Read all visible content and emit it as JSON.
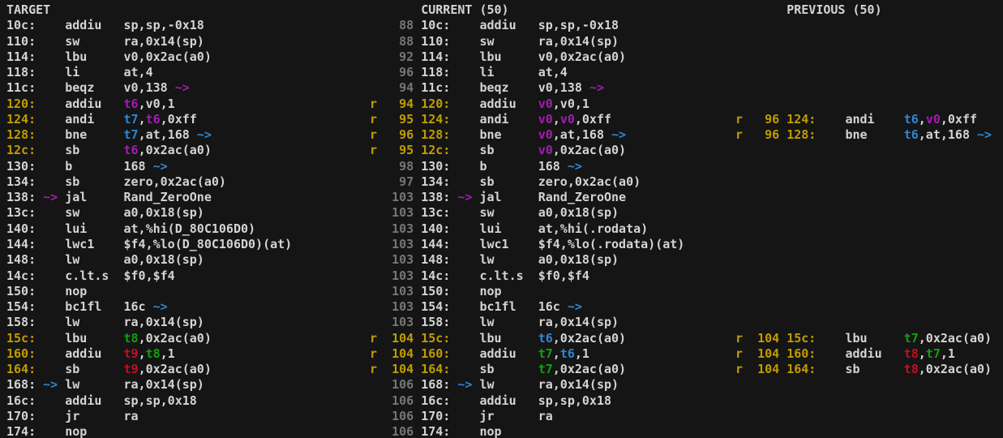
{
  "palette": {
    "fg": "#d4d4d4",
    "dim": "#767676",
    "yellow": "#c19c00",
    "magenta": "#a21db0",
    "blue": "#2e86d6",
    "green": "#13a10e",
    "red": "#c50f1f",
    "bg": "#151515"
  },
  "columns": [
    {
      "id": "target",
      "header": "TARGET",
      "rows": [
        [
          [
            "10c:    addiu   sp,sp,-0x18",
            "fg"
          ]
        ],
        [
          [
            "110:    sw      ra,0x14(sp)",
            "fg"
          ]
        ],
        [
          [
            "114:    lbu     v0,0x2ac(a0)",
            "fg"
          ]
        ],
        [
          [
            "118:    li      at,4",
            "fg"
          ]
        ],
        [
          [
            "11c:    beqz    v0,138 ",
            "fg"
          ],
          [
            "~>",
            "m"
          ]
        ],
        [
          [
            "120:",
            "y"
          ],
          [
            "    addiu   ",
            "fg"
          ],
          [
            "t6",
            "m"
          ],
          [
            ",v0,1",
            "fg"
          ]
        ],
        [
          [
            "124:",
            "y"
          ],
          [
            "    andi    ",
            "fg"
          ],
          [
            "t7",
            "b"
          ],
          [
            ",",
            "fg"
          ],
          [
            "t6",
            "m"
          ],
          [
            ",0xff",
            "fg"
          ]
        ],
        [
          [
            "128:",
            "y"
          ],
          [
            "    bne     ",
            "fg"
          ],
          [
            "t7",
            "b"
          ],
          [
            ",at,168 ",
            "fg"
          ],
          [
            "~>",
            "b"
          ]
        ],
        [
          [
            "12c:",
            "y"
          ],
          [
            "    sb      ",
            "fg"
          ],
          [
            "t6",
            "m"
          ],
          [
            ",0x2ac(a0)",
            "fg"
          ]
        ],
        [
          [
            "130:    b       168 ",
            "fg"
          ],
          [
            "~>",
            "b"
          ]
        ],
        [
          [
            "134:    sb      zero,0x2ac(a0)",
            "fg"
          ]
        ],
        [
          [
            "138: ",
            "fg"
          ],
          [
            "~>",
            "m"
          ],
          [
            " jal     Rand_ZeroOne",
            "fg"
          ]
        ],
        [
          [
            "13c:    sw      a0,0x18(sp)",
            "fg"
          ]
        ],
        [
          [
            "140:    lui     at,%hi(D_80C106D0)",
            "fg"
          ]
        ],
        [
          [
            "144:    lwc1    $f4,%lo(D_80C106D0)(at)",
            "fg"
          ]
        ],
        [
          [
            "148:    lw      a0,0x18(sp)",
            "fg"
          ]
        ],
        [
          [
            "14c:    c.lt.s  $f0,$f4",
            "fg"
          ]
        ],
        [
          [
            "150:    nop",
            "fg"
          ]
        ],
        [
          [
            "154:    bc1fl   16c ",
            "fg"
          ],
          [
            "~>",
            "b"
          ]
        ],
        [
          [
            "158:    lw      ra,0x14(sp)",
            "fg"
          ]
        ],
        [
          [
            "15c:",
            "y"
          ],
          [
            "    lbu     ",
            "fg"
          ],
          [
            "t8",
            "g"
          ],
          [
            ",0x2ac(a0)",
            "fg"
          ]
        ],
        [
          [
            "160:",
            "y"
          ],
          [
            "    addiu   ",
            "fg"
          ],
          [
            "t9",
            "r"
          ],
          [
            ",",
            "fg"
          ],
          [
            "t8",
            "g"
          ],
          [
            ",1",
            "fg"
          ]
        ],
        [
          [
            "164:",
            "y"
          ],
          [
            "    sb      ",
            "fg"
          ],
          [
            "t9",
            "r"
          ],
          [
            ",0x2ac(a0)",
            "fg"
          ]
        ],
        [
          [
            "168: ",
            "fg"
          ],
          [
            "~>",
            "b"
          ],
          [
            " lw      ra,0x14(sp)",
            "fg"
          ]
        ],
        [
          [
            "16c:    addiu   sp,sp,0x18",
            "fg"
          ]
        ],
        [
          [
            "170:    jr      ra",
            "fg"
          ]
        ],
        [
          [
            "174:    nop",
            "fg"
          ]
        ]
      ]
    },
    {
      "id": "current",
      "header": "CURRENT (50)",
      "rows": [
        [
          [
            "    88 ",
            "dim"
          ],
          [
            "10c:    addiu   sp,sp,-0x18",
            "fg"
          ]
        ],
        [
          [
            "    88 ",
            "dim"
          ],
          [
            "110:    sw      ra,0x14(sp)",
            "fg"
          ]
        ],
        [
          [
            "    92 ",
            "dim"
          ],
          [
            "114:    lbu     v0,0x2ac(a0)",
            "fg"
          ]
        ],
        [
          [
            "    96 ",
            "dim"
          ],
          [
            "118:    li      at,4",
            "fg"
          ]
        ],
        [
          [
            "    94 ",
            "dim"
          ],
          [
            "11c:    beqz    v0,138 ",
            "fg"
          ],
          [
            "~>",
            "m"
          ]
        ],
        [
          [
            "r   94 120:",
            "y"
          ],
          [
            "    addiu   ",
            "fg"
          ],
          [
            "v0",
            "m"
          ],
          [
            ",v0,1",
            "fg"
          ]
        ],
        [
          [
            "r   95 124:",
            "y"
          ],
          [
            "    andi    ",
            "fg"
          ],
          [
            "v0",
            "m"
          ],
          [
            ",",
            "fg"
          ],
          [
            "v0",
            "m"
          ],
          [
            ",0xff",
            "fg"
          ]
        ],
        [
          [
            "r   96 128:",
            "y"
          ],
          [
            "    bne     ",
            "fg"
          ],
          [
            "v0",
            "m"
          ],
          [
            ",at,168 ",
            "fg"
          ],
          [
            "~>",
            "b"
          ]
        ],
        [
          [
            "r   95 12c:",
            "y"
          ],
          [
            "    sb      ",
            "fg"
          ],
          [
            "v0",
            "m"
          ],
          [
            ",0x2ac(a0)",
            "fg"
          ]
        ],
        [
          [
            "    98 ",
            "dim"
          ],
          [
            "130:    b       168 ",
            "fg"
          ],
          [
            "~>",
            "b"
          ]
        ],
        [
          [
            "    97 ",
            "dim"
          ],
          [
            "134:    sb      zero,0x2ac(a0)",
            "fg"
          ]
        ],
        [
          [
            "   103 ",
            "dim"
          ],
          [
            "138: ",
            "fg"
          ],
          [
            "~>",
            "m"
          ],
          [
            " jal     Rand_ZeroOne",
            "fg"
          ]
        ],
        [
          [
            "   103 ",
            "dim"
          ],
          [
            "13c:    sw      a0,0x18(sp)",
            "fg"
          ]
        ],
        [
          [
            "   103 ",
            "dim"
          ],
          [
            "140:    lui     at,%hi(.rodata)",
            "fg"
          ]
        ],
        [
          [
            "   103 ",
            "dim"
          ],
          [
            "144:    lwc1    $f4,%lo(.rodata)(at)",
            "fg"
          ]
        ],
        [
          [
            "   103 ",
            "dim"
          ],
          [
            "148:    lw      a0,0x18(sp)",
            "fg"
          ]
        ],
        [
          [
            "   103 ",
            "dim"
          ],
          [
            "14c:    c.lt.s  $f0,$f4",
            "fg"
          ]
        ],
        [
          [
            "   103 ",
            "dim"
          ],
          [
            "150:    nop",
            "fg"
          ]
        ],
        [
          [
            "   103 ",
            "dim"
          ],
          [
            "154:    bc1fl   16c ",
            "fg"
          ],
          [
            "~>",
            "b"
          ]
        ],
        [
          [
            "   103 ",
            "dim"
          ],
          [
            "158:    lw      ra,0x14(sp)",
            "fg"
          ]
        ],
        [
          [
            "r  104 15c:",
            "y"
          ],
          [
            "    lbu     ",
            "fg"
          ],
          [
            "t6",
            "b"
          ],
          [
            ",0x2ac(a0)",
            "fg"
          ]
        ],
        [
          [
            "r  104 160:",
            "y"
          ],
          [
            "    addiu   ",
            "fg"
          ],
          [
            "t7",
            "g"
          ],
          [
            ",",
            "fg"
          ],
          [
            "t6",
            "b"
          ],
          [
            ",1",
            "fg"
          ]
        ],
        [
          [
            "r  104 164:",
            "y"
          ],
          [
            "    sb      ",
            "fg"
          ],
          [
            "t7",
            "g"
          ],
          [
            ",0x2ac(a0)",
            "fg"
          ]
        ],
        [
          [
            "   106 ",
            "dim"
          ],
          [
            "168: ",
            "fg"
          ],
          [
            "~>",
            "b"
          ],
          [
            " lw      ra,0x14(sp)",
            "fg"
          ]
        ],
        [
          [
            "   106 ",
            "dim"
          ],
          [
            "16c:    addiu   sp,sp,0x18",
            "fg"
          ]
        ],
        [
          [
            "   106 ",
            "dim"
          ],
          [
            "170:    jr      ra",
            "fg"
          ]
        ],
        [
          [
            "   106 ",
            "dim"
          ],
          [
            "174:    nop",
            "fg"
          ]
        ]
      ]
    },
    {
      "id": "previous",
      "header": "PREVIOUS (50)",
      "rows": [
        [],
        [],
        [],
        [],
        [],
        [],
        [
          [
            "r   96 124:",
            "y"
          ],
          [
            "    andi    ",
            "fg"
          ],
          [
            "t6",
            "b"
          ],
          [
            ",",
            "fg"
          ],
          [
            "v0",
            "m"
          ],
          [
            ",0xff",
            "fg"
          ]
        ],
        [
          [
            "r   96 128:",
            "y"
          ],
          [
            "    bne     ",
            "fg"
          ],
          [
            "t6",
            "b"
          ],
          [
            ",at,168 ",
            "fg"
          ],
          [
            "~>",
            "b"
          ]
        ],
        [],
        [],
        [],
        [],
        [],
        [],
        [],
        [],
        [],
        [],
        [],
        [],
        [
          [
            "r  104 15c:",
            "y"
          ],
          [
            "    lbu     ",
            "fg"
          ],
          [
            "t7",
            "g"
          ],
          [
            ",0x2ac(a0)",
            "fg"
          ]
        ],
        [
          [
            "r  104 160:",
            "y"
          ],
          [
            "    addiu   ",
            "fg"
          ],
          [
            "t8",
            "r"
          ],
          [
            ",",
            "fg"
          ],
          [
            "t7",
            "g"
          ],
          [
            ",1",
            "fg"
          ]
        ],
        [
          [
            "r  104 164:",
            "y"
          ],
          [
            "    sb      ",
            "fg"
          ],
          [
            "t8",
            "r"
          ],
          [
            ",0x2ac(a0)",
            "fg"
          ]
        ],
        [],
        [],
        [],
        []
      ]
    }
  ]
}
